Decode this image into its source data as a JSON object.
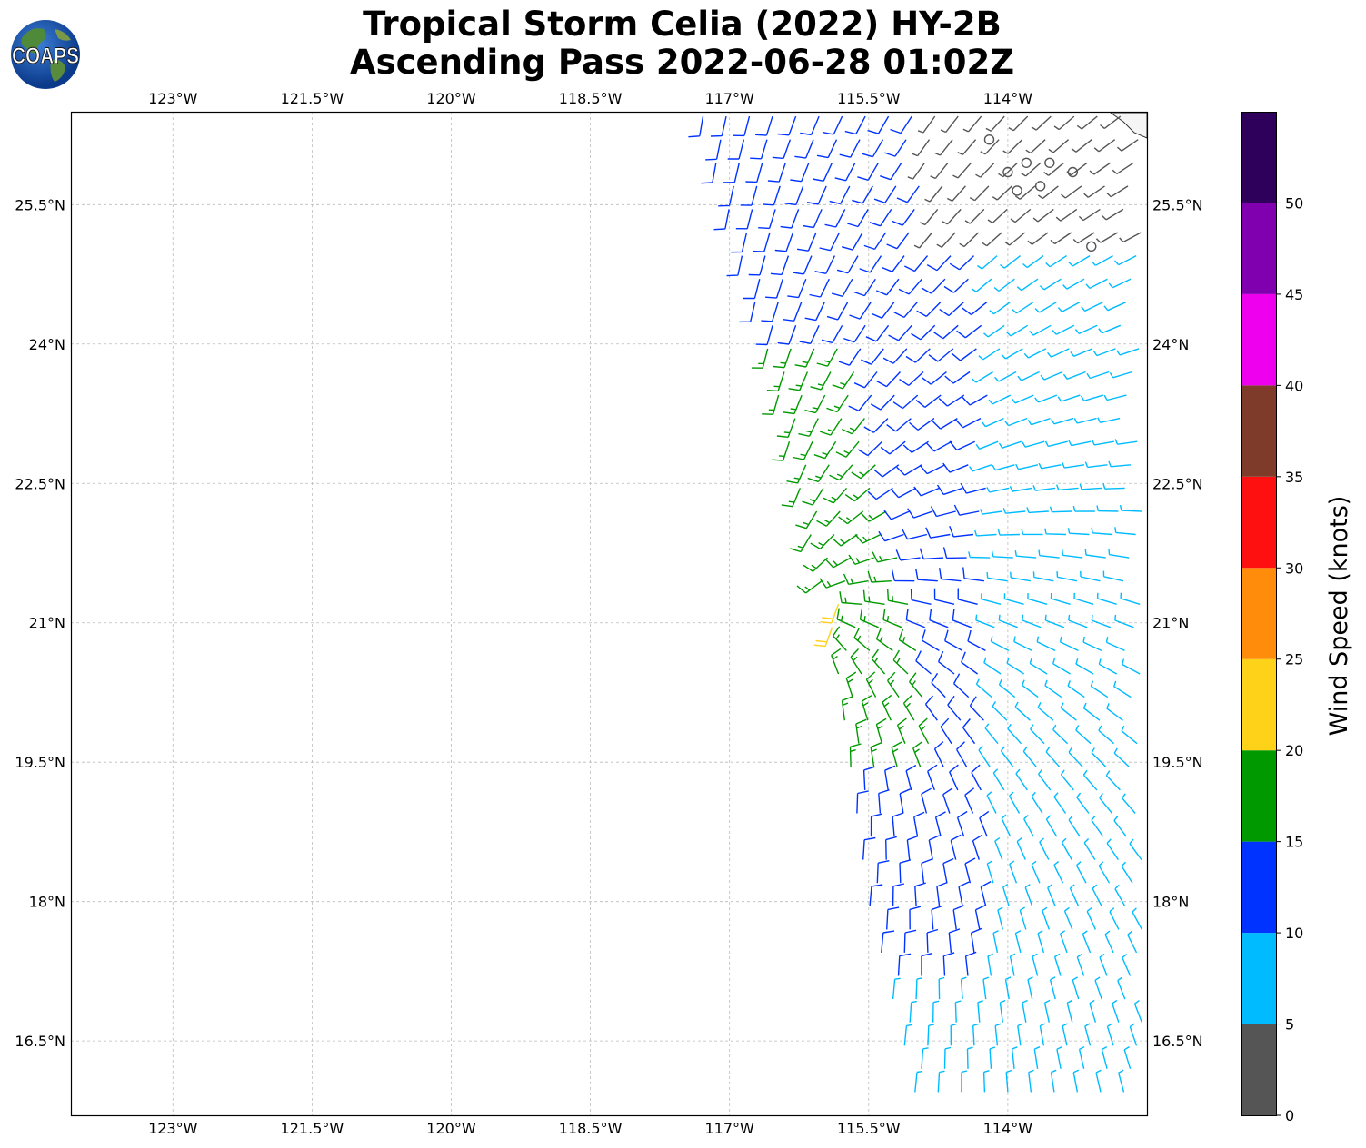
{
  "title": {
    "line1": "Tropical Storm Celia (2022) HY-2B",
    "line2": "Ascending Pass 2022-06-28 01:02Z"
  },
  "logo": {
    "text": "COAPS",
    "icon": "globe-logo-icon"
  },
  "map": {
    "lon_ticks": [
      "123°W",
      "121.5°W",
      "120°W",
      "118.5°W",
      "117°W",
      "115.5°W",
      "114°W"
    ],
    "lat_ticks": [
      "25.5°N",
      "24°N",
      "22.5°N",
      "21°N",
      "19.5°N",
      "18°N",
      "16.5°N"
    ],
    "lon_range": [
      -124.1,
      -112.5
    ],
    "lat_range": [
      15.7,
      26.5
    ],
    "grid": true,
    "land_color": "#f5f5f5"
  },
  "colorbar": {
    "label": "Wind Speed (knots)",
    "ticks": [
      "0",
      "5",
      "10",
      "15",
      "20",
      "25",
      "30",
      "35",
      "40",
      "45",
      "50"
    ],
    "colors": [
      "#555555",
      "#00bbff",
      "#0033ff",
      "#009900",
      "#ffd21a",
      "#ff8c0a",
      "#ff1010",
      "#7e3b2a",
      "#ee00ee",
      "#8000b0",
      "#2e005c"
    ]
  },
  "chart_data": {
    "type": "wind_barbs",
    "swath": {
      "west_edge": [
        [
          26.5,
          -117.3
        ],
        [
          24.0,
          -116.6
        ],
        [
          21.0,
          -115.9
        ],
        [
          19.5,
          -115.7
        ],
        [
          18.0,
          -115.5
        ],
        [
          16.0,
          -115.0
        ]
      ],
      "east_edge_lon": -112.5
    },
    "speed_regions": [
      {
        "color": "#0033ff",
        "description": "Northwestern swath 10-15 kt"
      },
      {
        "color": "#00bbff",
        "description": "Northern and eastern swath 5-10 kt"
      },
      {
        "color": "#555555",
        "description": "Near Baja coast 0-5 kt"
      },
      {
        "color": "#009900",
        "description": "Western edge 15-20 kt"
      },
      {
        "color": "#ffd21a",
        "description": "Isolated 20-25 kt near 21.2N 116.2W"
      }
    ]
  }
}
